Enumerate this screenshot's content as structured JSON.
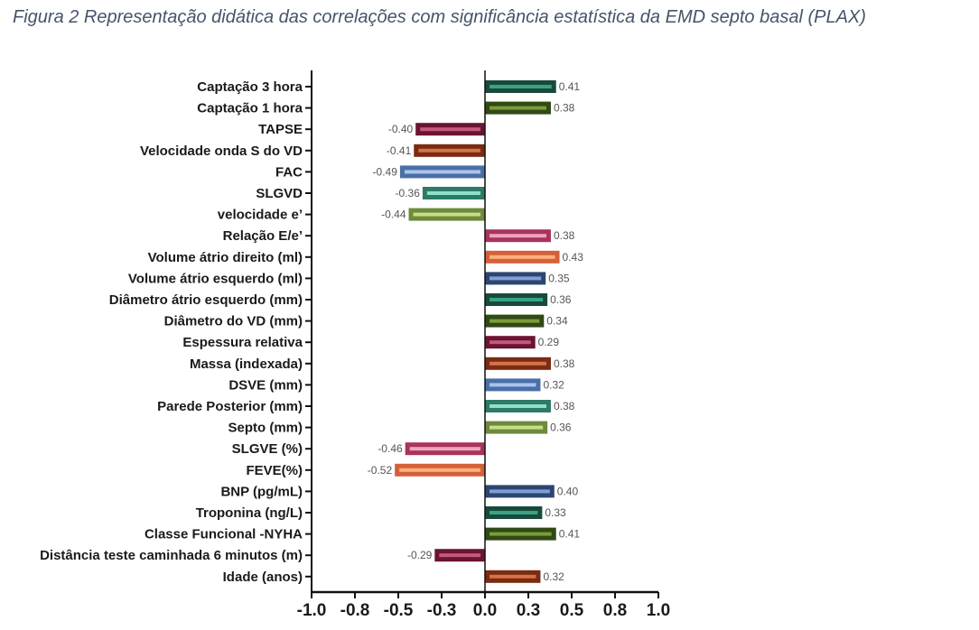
{
  "caption": "Figura 2 Representação didática das correlações com significância estatística da EMD  septo basal (PLAX)",
  "chart_data": {
    "type": "bar",
    "orientation": "horizontal",
    "title": "Figura 2 Representação didática das correlações com significância estatística da EMD  septo basal (PLAX)",
    "xlim": [
      -1.0,
      1.0
    ],
    "xticks": [
      -1.0,
      -0.75,
      -0.5,
      -0.25,
      0.0,
      0.25,
      0.5,
      0.75,
      1.0
    ],
    "xtick_labels": [
      "-1.0",
      "-0.8",
      "-0.5",
      "-0.3",
      "0.0",
      "0.3",
      "0.5",
      "0.8",
      "1.0"
    ],
    "grid": false,
    "legend": "none",
    "categories": [
      "Captação 3 hora",
      "Captação 1 hora",
      "TAPSE",
      "Velocidade onda S do VD",
      "FAC",
      "SLGVD",
      "velocidade e’",
      "Relação E/e’",
      "Volume átrio direito (ml)",
      "Volume átrio esquerdo (ml)",
      "Diâmetro átrio esquerdo (mm)",
      "Diâmetro do VD (mm)",
      "Espessura relativa",
      "Massa (indexada)",
      "DSVE (mm)",
      "Parede Posterior (mm)",
      "Septo (mm)",
      "SLGVE (%)",
      "FEVE(%)",
      "BNP (pg/mL)",
      "Troponina (ng/L)",
      "Classe Funcional -NYHA",
      "Distância teste caminhada 6 minutos (m)",
      "Idade (anos)"
    ],
    "values": [
      0.41,
      0.38,
      -0.4,
      -0.41,
      -0.49,
      -0.36,
      -0.44,
      0.38,
      0.43,
      0.35,
      0.36,
      0.34,
      0.29,
      0.38,
      0.32,
      0.38,
      0.36,
      -0.46,
      -0.52,
      0.4,
      0.33,
      0.41,
      -0.29,
      0.32
    ],
    "value_labels": [
      "0.41",
      "0.38",
      "-0.40",
      "-0.41",
      "-0.49",
      "-0.36",
      "-0.44",
      "0.38",
      "0.43",
      "0.35",
      "0.36",
      "0.34",
      "0.29",
      "0.38",
      "0.32",
      "0.38",
      "0.36",
      "-0.46",
      "-0.52",
      "0.40",
      "0.33",
      "0.41",
      "-0.29",
      "0.32"
    ],
    "colors": [
      {
        "fill": "#184a3c",
        "stripe": "#3aa384"
      },
      {
        "fill": "#2f4a14",
        "stripe": "#7d9b3a"
      },
      {
        "fill": "#6b1434",
        "stripe": "#c4587f"
      },
      {
        "fill": "#7a2b12",
        "stripe": "#d2734a"
      },
      {
        "fill": "#4a6fa8",
        "stripe": "#a9c4ec"
      },
      {
        "fill": "#2e7a66",
        "stripe": "#8fe0c8"
      },
      {
        "fill": "#6f8a3c",
        "stripe": "#c8dd8a"
      },
      {
        "fill": "#a8345e",
        "stripe": "#f0a2bf"
      },
      {
        "fill": "#d4603a",
        "stripe": "#ffb07a"
      },
      {
        "fill": "#2d4670",
        "stripe": "#7fa0d6"
      },
      {
        "fill": "#184a3c",
        "stripe": "#3aa384"
      },
      {
        "fill": "#2f4a14",
        "stripe": "#7d9b3a"
      },
      {
        "fill": "#6b1434",
        "stripe": "#c4587f"
      },
      {
        "fill": "#7a2b12",
        "stripe": "#d2734a"
      },
      {
        "fill": "#4a6fa8",
        "stripe": "#a9c4ec"
      },
      {
        "fill": "#2e7a66",
        "stripe": "#8fe0c8"
      },
      {
        "fill": "#6f8a3c",
        "stripe": "#c8dd8a"
      },
      {
        "fill": "#a8345e",
        "stripe": "#f0a2bf"
      },
      {
        "fill": "#d4603a",
        "stripe": "#ffb07a"
      },
      {
        "fill": "#2d4670",
        "stripe": "#7fa0d6"
      },
      {
        "fill": "#184a3c",
        "stripe": "#3aa384"
      },
      {
        "fill": "#2f4a14",
        "stripe": "#7d9b3a"
      },
      {
        "fill": "#6b1434",
        "stripe": "#c4587f"
      },
      {
        "fill": "#7a2b12",
        "stripe": "#d2734a"
      }
    ]
  }
}
